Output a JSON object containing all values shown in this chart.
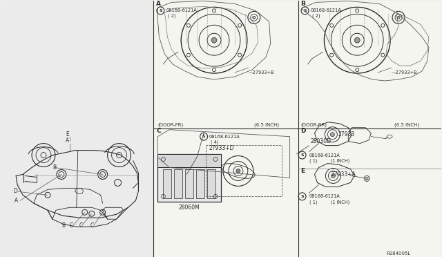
{
  "bg_color": "#f0eeea",
  "line_color": "#2a2a2a",
  "light_color": "#888888",
  "gray_color": "#aaaaaa",
  "panel_dividers": {
    "main_vert": 222,
    "mid_horiz": 187,
    "lower_vert": 432
  },
  "labels": {
    "car_A": "A",
    "car_B": "B",
    "car_C": "C",
    "car_D": "D",
    "car_E": "E",
    "pA": "A",
    "pB": "B",
    "pC": "C",
    "pD": "D",
    "pE": "E",
    "bolt_pn": "08168-6121A",
    "bolt_2": "( 2)",
    "bolt_4": "( 4)",
    "bolt_1": "( 1)",
    "speaker_B": "27933+B",
    "speaker_D": "27933",
    "speaker_E": "27933+A",
    "speaker_C_dash": "27933+D",
    "sub_pn": "28030D",
    "amp_pn": "28060M",
    "door_fr": "(DOOR-FR)",
    "door_rr": "(DOOR-RR)",
    "inch65": "(6.5 INCH)",
    "inch1": "(1 INCH)",
    "ref": "R284005L",
    "arrow_dash": "—"
  }
}
